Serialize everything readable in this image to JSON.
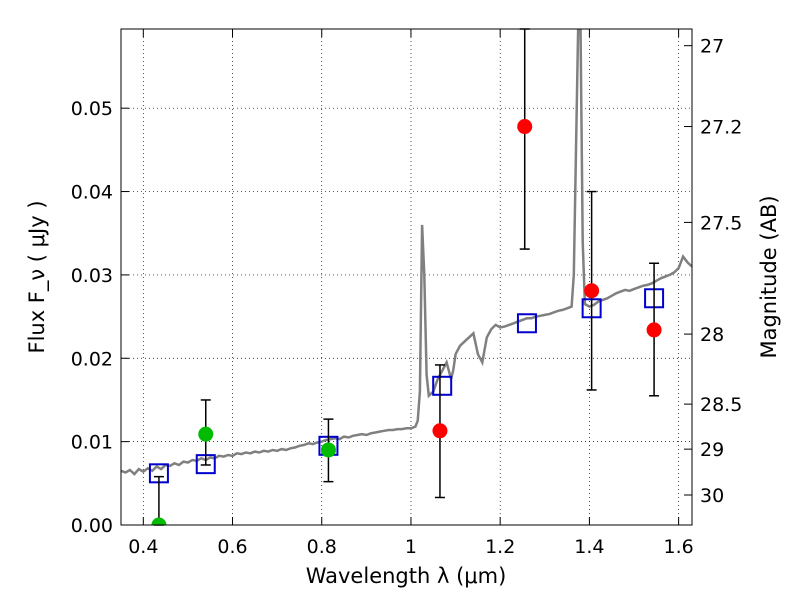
{
  "chart_data": {
    "type": "scatter",
    "title": "",
    "xlabel": "Wavelength  λ (μm)",
    "ylabel": "Flux  F_ν  ( μJy )",
    "ylabel_right": "Magnitude (AB)",
    "xlim": [
      0.35,
      1.63
    ],
    "ylim": [
      0.0,
      0.0595
    ],
    "xticks": [
      0.4,
      0.6,
      0.8,
      1.0,
      1.2,
      1.4,
      1.6
    ],
    "xtick_labels": [
      "0.4",
      "0.6",
      "0.8",
      "1",
      "1.2",
      "1.4",
      "1.6"
    ],
    "yticks": [
      0.0,
      0.01,
      0.02,
      0.03,
      0.04,
      0.05
    ],
    "ytick_labels": [
      "0.00",
      "0.01",
      "0.02",
      "0.03",
      "0.04",
      "0.05"
    ],
    "right_axis_ticks": [
      {
        "label": "27",
        "flux": 0.0575
      },
      {
        "label": "27.2",
        "flux": 0.0478
      },
      {
        "label": "27.5",
        "flux": 0.0363
      },
      {
        "label": "28",
        "flux": 0.0229
      },
      {
        "label": "28.5",
        "flux": 0.0145
      },
      {
        "label": "29",
        "flux": 0.0091
      },
      {
        "label": "30",
        "flux": 0.0036
      }
    ],
    "grid": true,
    "series": [
      {
        "marker": "line",
        "color": "#808080",
        "points": [
          [
            0.35,
            0.0065
          ],
          [
            0.36,
            0.0063
          ],
          [
            0.37,
            0.0066
          ],
          [
            0.38,
            0.0061
          ],
          [
            0.39,
            0.0067
          ],
          [
            0.4,
            0.0064
          ],
          [
            0.41,
            0.0068
          ],
          [
            0.42,
            0.0065
          ],
          [
            0.43,
            0.007
          ],
          [
            0.44,
            0.0067
          ],
          [
            0.45,
            0.0072
          ],
          [
            0.46,
            0.0071
          ],
          [
            0.47,
            0.0074
          ],
          [
            0.48,
            0.0072
          ],
          [
            0.49,
            0.0076
          ],
          [
            0.5,
            0.0075
          ],
          [
            0.51,
            0.0078
          ],
          [
            0.52,
            0.0077
          ],
          [
            0.53,
            0.008
          ],
          [
            0.54,
            0.0078
          ],
          [
            0.55,
            0.0081
          ],
          [
            0.56,
            0.008
          ],
          [
            0.57,
            0.0083
          ],
          [
            0.58,
            0.0082
          ],
          [
            0.59,
            0.0084
          ],
          [
            0.6,
            0.0083
          ],
          [
            0.61,
            0.0086
          ],
          [
            0.62,
            0.0085
          ],
          [
            0.63,
            0.0087
          ],
          [
            0.64,
            0.0086
          ],
          [
            0.65,
            0.0088
          ],
          [
            0.66,
            0.0087
          ],
          [
            0.67,
            0.0089
          ],
          [
            0.68,
            0.0088
          ],
          [
            0.69,
            0.009
          ],
          [
            0.7,
            0.0089
          ],
          [
            0.71,
            0.0091
          ],
          [
            0.72,
            0.009
          ],
          [
            0.73,
            0.0092
          ],
          [
            0.74,
            0.0093
          ],
          [
            0.75,
            0.0095
          ],
          [
            0.76,
            0.0096
          ],
          [
            0.77,
            0.0098
          ],
          [
            0.78,
            0.0097
          ],
          [
            0.79,
            0.0099
          ],
          [
            0.8,
            0.01
          ],
          [
            0.81,
            0.0102
          ],
          [
            0.82,
            0.0103
          ],
          [
            0.83,
            0.0104
          ],
          [
            0.84,
            0.0103
          ],
          [
            0.85,
            0.0106
          ],
          [
            0.86,
            0.0105
          ],
          [
            0.87,
            0.0107
          ],
          [
            0.88,
            0.0108
          ],
          [
            0.89,
            0.0109
          ],
          [
            0.9,
            0.0108
          ],
          [
            0.91,
            0.011
          ],
          [
            0.92,
            0.0111
          ],
          [
            0.93,
            0.0112
          ],
          [
            0.94,
            0.0113
          ],
          [
            0.95,
            0.0114
          ],
          [
            0.96,
            0.0114
          ],
          [
            0.97,
            0.0115
          ],
          [
            0.98,
            0.0115
          ],
          [
            0.99,
            0.0116
          ],
          [
            1.0,
            0.0116
          ],
          [
            1.01,
            0.0118
          ],
          [
            1.015,
            0.0125
          ],
          [
            1.02,
            0.016
          ],
          [
            1.025,
            0.036
          ],
          [
            1.03,
            0.03
          ],
          [
            1.035,
            0.018
          ],
          [
            1.04,
            0.0155
          ],
          [
            1.05,
            0.016
          ],
          [
            1.06,
            0.0175
          ],
          [
            1.07,
            0.0185
          ],
          [
            1.08,
            0.0195
          ],
          [
            1.09,
            0.0175
          ],
          [
            1.095,
            0.0186
          ],
          [
            1.1,
            0.0205
          ],
          [
            1.11,
            0.0215
          ],
          [
            1.12,
            0.022
          ],
          [
            1.13,
            0.0225
          ],
          [
            1.14,
            0.023
          ],
          [
            1.15,
            0.0205
          ],
          [
            1.16,
            0.0195
          ],
          [
            1.17,
            0.0225
          ],
          [
            1.18,
            0.0235
          ],
          [
            1.19,
            0.024
          ],
          [
            1.2,
            0.0237
          ],
          [
            1.21,
            0.0238
          ],
          [
            1.22,
            0.024
          ],
          [
            1.23,
            0.0242
          ],
          [
            1.24,
            0.0244
          ],
          [
            1.25,
            0.0246
          ],
          [
            1.26,
            0.0248
          ],
          [
            1.27,
            0.0248
          ],
          [
            1.28,
            0.025
          ],
          [
            1.29,
            0.0251
          ],
          [
            1.3,
            0.0252
          ],
          [
            1.31,
            0.0253
          ],
          [
            1.32,
            0.0255
          ],
          [
            1.33,
            0.0257
          ],
          [
            1.34,
            0.0258
          ],
          [
            1.35,
            0.026
          ],
          [
            1.36,
            0.0262
          ],
          [
            1.365,
            0.03
          ],
          [
            1.37,
            0.045
          ],
          [
            1.375,
            0.06
          ],
          [
            1.38,
            0.06
          ],
          [
            1.385,
            0.034
          ],
          [
            1.39,
            0.0265
          ],
          [
            1.4,
            0.0262
          ],
          [
            1.41,
            0.0264
          ],
          [
            1.42,
            0.0268
          ],
          [
            1.43,
            0.027
          ],
          [
            1.44,
            0.0272
          ],
          [
            1.45,
            0.0275
          ],
          [
            1.46,
            0.0278
          ],
          [
            1.47,
            0.028
          ],
          [
            1.48,
            0.0282
          ],
          [
            1.49,
            0.0281
          ],
          [
            1.5,
            0.0283
          ],
          [
            1.51,
            0.0285
          ],
          [
            1.52,
            0.0287
          ],
          [
            1.53,
            0.0288
          ],
          [
            1.54,
            0.029
          ],
          [
            1.55,
            0.0293
          ],
          [
            1.56,
            0.0296
          ],
          [
            1.57,
            0.0298
          ],
          [
            1.58,
            0.03
          ],
          [
            1.59,
            0.0303
          ],
          [
            1.6,
            0.0308
          ],
          [
            1.61,
            0.0322
          ],
          [
            1.62,
            0.0315
          ],
          [
            1.63,
            0.031
          ]
        ]
      },
      {
        "marker": "open-square",
        "color": "#0000cc",
        "points": [
          [
            0.435,
            0.0062
          ],
          [
            0.54,
            0.0073
          ],
          [
            0.815,
            0.0095
          ],
          [
            1.07,
            0.0167
          ],
          [
            1.26,
            0.0242
          ],
          [
            1.405,
            0.026
          ],
          [
            1.545,
            0.0272
          ]
        ]
      },
      {
        "marker": "circle",
        "color": "#00bb00",
        "points": [
          {
            "x": 0.435,
            "y": 0.0,
            "err_low": 0.0,
            "err_high": 0.0058
          },
          {
            "x": 0.54,
            "y": 0.0109,
            "err_low": 0.0072,
            "err_high": 0.015
          },
          {
            "x": 0.815,
            "y": 0.009,
            "err_low": 0.0052,
            "err_high": 0.0127
          }
        ]
      },
      {
        "marker": "circle",
        "color": "#ff0000",
        "points": [
          {
            "x": 1.065,
            "y": 0.0113,
            "err_low": 0.0033,
            "err_high": 0.0192
          },
          {
            "x": 1.255,
            "y": 0.0478,
            "err_low": 0.0331,
            "err_high": 0.0595
          },
          {
            "x": 1.405,
            "y": 0.0281,
            "err_low": 0.0162,
            "err_high": 0.04
          },
          {
            "x": 1.545,
            "y": 0.0234,
            "err_low": 0.0155,
            "err_high": 0.0314
          }
        ]
      }
    ]
  }
}
